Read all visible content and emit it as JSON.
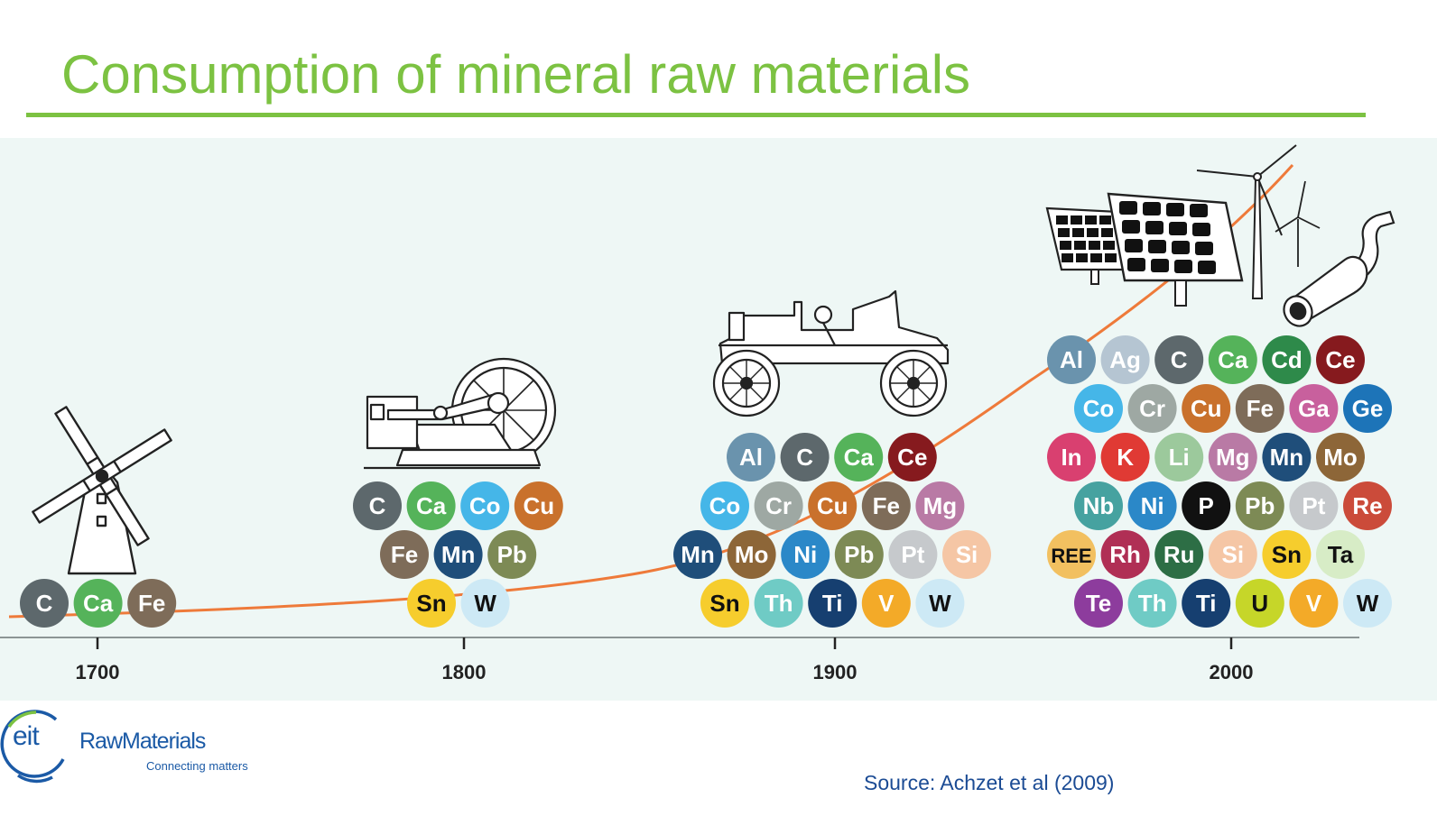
{
  "title": "Consumption of mineral raw materials",
  "source": "Source: Achzet et al (2009)",
  "logo": {
    "mark": "eit",
    "wordmark": "RawMaterials",
    "tagline": "Connecting matters"
  },
  "colors": {
    "title_green": "#7cc242",
    "panel_bg": "#eef7f5",
    "curve": "#ee7a3a",
    "logo_blue": "#1b5aa6"
  },
  "axis": {
    "ticks": [
      "1700",
      "1800",
      "1900",
      "2000"
    ]
  },
  "element_colors": {
    "Al": "#6a93ad",
    "Ag": "#b5c5d2",
    "C": "#5d686c",
    "Ca": "#55b35a",
    "Cd": "#2e8a4a",
    "Ce": "#861a1e",
    "Co": "#45b6e8",
    "Cr": "#9ea8a3",
    "Cu": "#c9712c",
    "Fe": "#7e6c59",
    "Ga": "#c8609d",
    "Ge": "#1d74b8",
    "In": "#d94070",
    "K": "#e03a34",
    "Li": "#9cc99c",
    "Mg": "#b97aa5",
    "Mn": "#1f4e7a",
    "Mo": "#8d6638",
    "Nb": "#46a2a0",
    "Ni": "#2b88c8",
    "P": "#111111",
    "Pb": "#7d8a55",
    "Pt": "#c6c9cc",
    "Re": "#cb4b3a",
    "REE": "#f2c060",
    "Rh": "#b02f55",
    "Ru": "#2d6e45",
    "Si": "#f5c6a5",
    "Sn": "#f6cd2d",
    "Ta": "#d7ecc6",
    "Te": "#8d3c9d",
    "Th": "#6fcbc5",
    "Ti": "#163f70",
    "U": "#c6d629",
    "V": "#f3aa28",
    "W": "#cde9f5"
  },
  "eras": [
    {
      "name": "1700",
      "illustration": "windmill-icon",
      "rows": [
        [
          "C",
          "Ca",
          "Fe"
        ]
      ]
    },
    {
      "name": "1800",
      "illustration": "steam-engine-icon",
      "rows": [
        [
          "C",
          "Ca",
          "Co",
          "Cu"
        ],
        [
          "Fe",
          "Mn",
          "Pb"
        ],
        [
          "Sn",
          "W"
        ]
      ]
    },
    {
      "name": "1900",
      "illustration": "car-icon",
      "rows": [
        [
          "Al",
          "C",
          "Ca",
          "Ce"
        ],
        [
          "Co",
          "Cr",
          "Cu",
          "Fe",
          "Mg"
        ],
        [
          "Mn",
          "Mo",
          "Ni",
          "Pb",
          "Pt",
          "Si"
        ],
        [
          "Sn",
          "Th",
          "Ti",
          "V",
          "W"
        ]
      ]
    },
    {
      "name": "2000",
      "illustration": "solar-wind-exhaust-icon",
      "rows": [
        [
          "Al",
          "Ag",
          "C",
          "Ca",
          "Cd",
          "Ce"
        ],
        [
          "Co",
          "Cr",
          "Cu",
          "Fe",
          "Ga",
          "Ge"
        ],
        [
          "In",
          "K",
          "Li",
          "Mg",
          "Mn",
          "Mo"
        ],
        [
          "Nb",
          "Ni",
          "P",
          "Pb",
          "Pt",
          "Re"
        ],
        [
          "REE",
          "Rh",
          "Ru",
          "Si",
          "Sn",
          "Ta"
        ],
        [
          "Te",
          "Th",
          "Ti",
          "U",
          "V",
          "W"
        ]
      ]
    }
  ]
}
